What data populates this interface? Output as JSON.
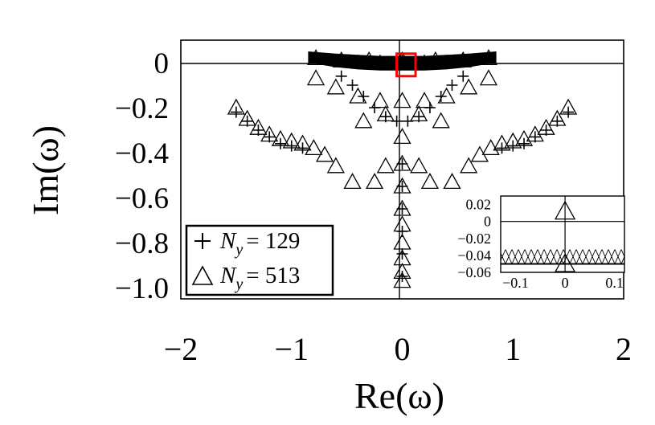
{
  "chart_data": [
    {
      "type": "scatter",
      "xlabel": "Re(ω)",
      "ylabel": "Im(ω)",
      "xlim": [
        -2,
        2
      ],
      "ylim": [
        -1.05,
        0.1
      ],
      "xticks": [
        "−2",
        "−1",
        "0",
        "1",
        "2"
      ],
      "xtick_values": [
        -2,
        -1,
        0,
        1,
        2
      ],
      "yticks": [
        "0",
        "−0.2",
        "−0.4",
        "−0.6",
        "−0.8",
        "−1.0"
      ],
      "ytick_values": [
        0,
        -0.2,
        -0.4,
        -0.6,
        -0.8,
        -1.0
      ],
      "legend": {
        "placement": "bottom-left"
      },
      "series": [
        {
          "name": "N_y = 129",
          "legend_text": "= 129",
          "marker": "plus",
          "points": [
            [
              -0.6,
              0.01
            ],
            [
              -0.4,
              0.01
            ],
            [
              -0.2,
              0.01
            ],
            [
              0,
              0.01
            ],
            [
              0.2,
              0.01
            ],
            [
              0.4,
              0.01
            ],
            [
              0.6,
              0.01
            ],
            [
              -0.55,
              -0.06
            ],
            [
              -0.45,
              -0.1
            ],
            [
              -0.35,
              -0.15
            ],
            [
              -0.25,
              -0.2
            ],
            [
              -0.15,
              -0.24
            ],
            [
              -0.05,
              -0.26
            ],
            [
              0.05,
              -0.26
            ],
            [
              0.15,
              -0.24
            ],
            [
              0.25,
              -0.2
            ],
            [
              0.35,
              -0.15
            ],
            [
              0.45,
              -0.1
            ],
            [
              0.55,
              -0.06
            ],
            [
              -1.5,
              -0.22
            ],
            [
              -1.4,
              -0.26
            ],
            [
              -1.3,
              -0.3
            ],
            [
              -1.2,
              -0.33
            ],
            [
              -1.1,
              -0.36
            ],
            [
              -1.0,
              -0.37
            ],
            [
              -0.9,
              -0.38
            ],
            [
              0.9,
              -0.38
            ],
            [
              1.0,
              -0.37
            ],
            [
              1.1,
              -0.36
            ],
            [
              1.2,
              -0.33
            ],
            [
              1.3,
              -0.3
            ],
            [
              1.4,
              -0.26
            ],
            [
              1.5,
              -0.22
            ],
            [
              0,
              -0.45
            ],
            [
              0,
              -0.55
            ],
            [
              0,
              -0.65
            ],
            [
              0,
              -0.75
            ],
            [
              0,
              -0.85
            ],
            [
              0,
              -0.95
            ]
          ]
        },
        {
          "name": "N_y = 513",
          "legend_text": "= 513",
          "marker": "triangle",
          "points": [
            [
              -0.78,
              0.02
            ],
            [
              -0.55,
              0.01
            ],
            [
              -0.3,
              0.01
            ],
            [
              0,
              0.01
            ],
            [
              0.3,
              0.01
            ],
            [
              0.55,
              0.01
            ],
            [
              0.78,
              0.02
            ],
            [
              -0.78,
              -0.07
            ],
            [
              -0.6,
              -0.11
            ],
            [
              -0.4,
              -0.15
            ],
            [
              -0.2,
              -0.17
            ],
            [
              0,
              -0.17
            ],
            [
              0.2,
              -0.17
            ],
            [
              0.4,
              -0.15
            ],
            [
              0.6,
              -0.11
            ],
            [
              0.78,
              -0.07
            ],
            [
              -1.5,
              -0.2
            ],
            [
              -1.4,
              -0.25
            ],
            [
              -1.3,
              -0.29
            ],
            [
              -1.2,
              -0.32
            ],
            [
              -1.1,
              -0.34
            ],
            [
              -1.0,
              -0.35
            ],
            [
              -0.9,
              -0.36
            ],
            [
              -0.8,
              -0.38
            ],
            [
              -0.7,
              -0.41
            ],
            [
              -0.6,
              -0.46
            ],
            [
              -0.45,
              -0.53
            ],
            [
              -0.25,
              -0.53
            ],
            [
              -0.15,
              -0.46
            ],
            [
              -0.35,
              -0.26
            ],
            [
              -0.15,
              -0.23
            ],
            [
              0.15,
              -0.23
            ],
            [
              0.35,
              -0.26
            ],
            [
              0.15,
              -0.46
            ],
            [
              0.25,
              -0.53
            ],
            [
              0.45,
              -0.53
            ],
            [
              0.6,
              -0.46
            ],
            [
              0.7,
              -0.41
            ],
            [
              0.8,
              -0.38
            ],
            [
              0.9,
              -0.36
            ],
            [
              1.0,
              -0.35
            ],
            [
              1.1,
              -0.34
            ],
            [
              1.2,
              -0.32
            ],
            [
              1.3,
              -0.29
            ],
            [
              1.4,
              -0.25
            ],
            [
              1.5,
              -0.2
            ],
            [
              0,
              -0.33
            ],
            [
              0,
              -0.45
            ],
            [
              0,
              -0.55
            ],
            [
              0,
              -0.65
            ],
            [
              0,
              -0.72
            ],
            [
              0,
              -0.8
            ],
            [
              0,
              -0.87
            ],
            [
              0,
              -0.93
            ],
            [
              0,
              -0.97
            ]
          ]
        }
      ],
      "band": {
        "x": [
          -0.85,
          -0.6,
          -0.4,
          -0.2,
          0,
          0.2,
          0.4,
          0.6,
          0.85
        ],
        "upper": [
          0.05,
          0.04,
          0.035,
          0.03,
          0.03,
          0.03,
          0.035,
          0.04,
          0.05
        ],
        "lower": [
          0.0,
          -0.02,
          -0.03,
          -0.035,
          -0.035,
          -0.035,
          -0.03,
          -0.02,
          0.0
        ]
      },
      "highlight_box": {
        "x": [
          -0.05,
          0.12
        ],
        "y": [
          -0.06,
          0.04
        ],
        "color": "#ff0000"
      }
    },
    {
      "type": "scatter",
      "role": "inset",
      "xlim": [
        -0.13,
        0.12
      ],
      "ylim": [
        -0.06,
        0.03
      ],
      "xticks": [
        "−0.1",
        "0",
        "0.1"
      ],
      "xtick_values": [
        -0.1,
        0,
        0.1
      ],
      "yticks": [
        "0.02",
        "0",
        "−0.02",
        "−0.04",
        "−0.06"
      ],
      "ytick_values": [
        0.02,
        0,
        -0.02,
        -0.04,
        -0.06
      ],
      "points": [
        [
          0,
          0.012
        ],
        [
          0,
          -0.05
        ]
      ],
      "band": {
        "y_upper": -0.033,
        "y_lower": -0.05
      }
    }
  ]
}
